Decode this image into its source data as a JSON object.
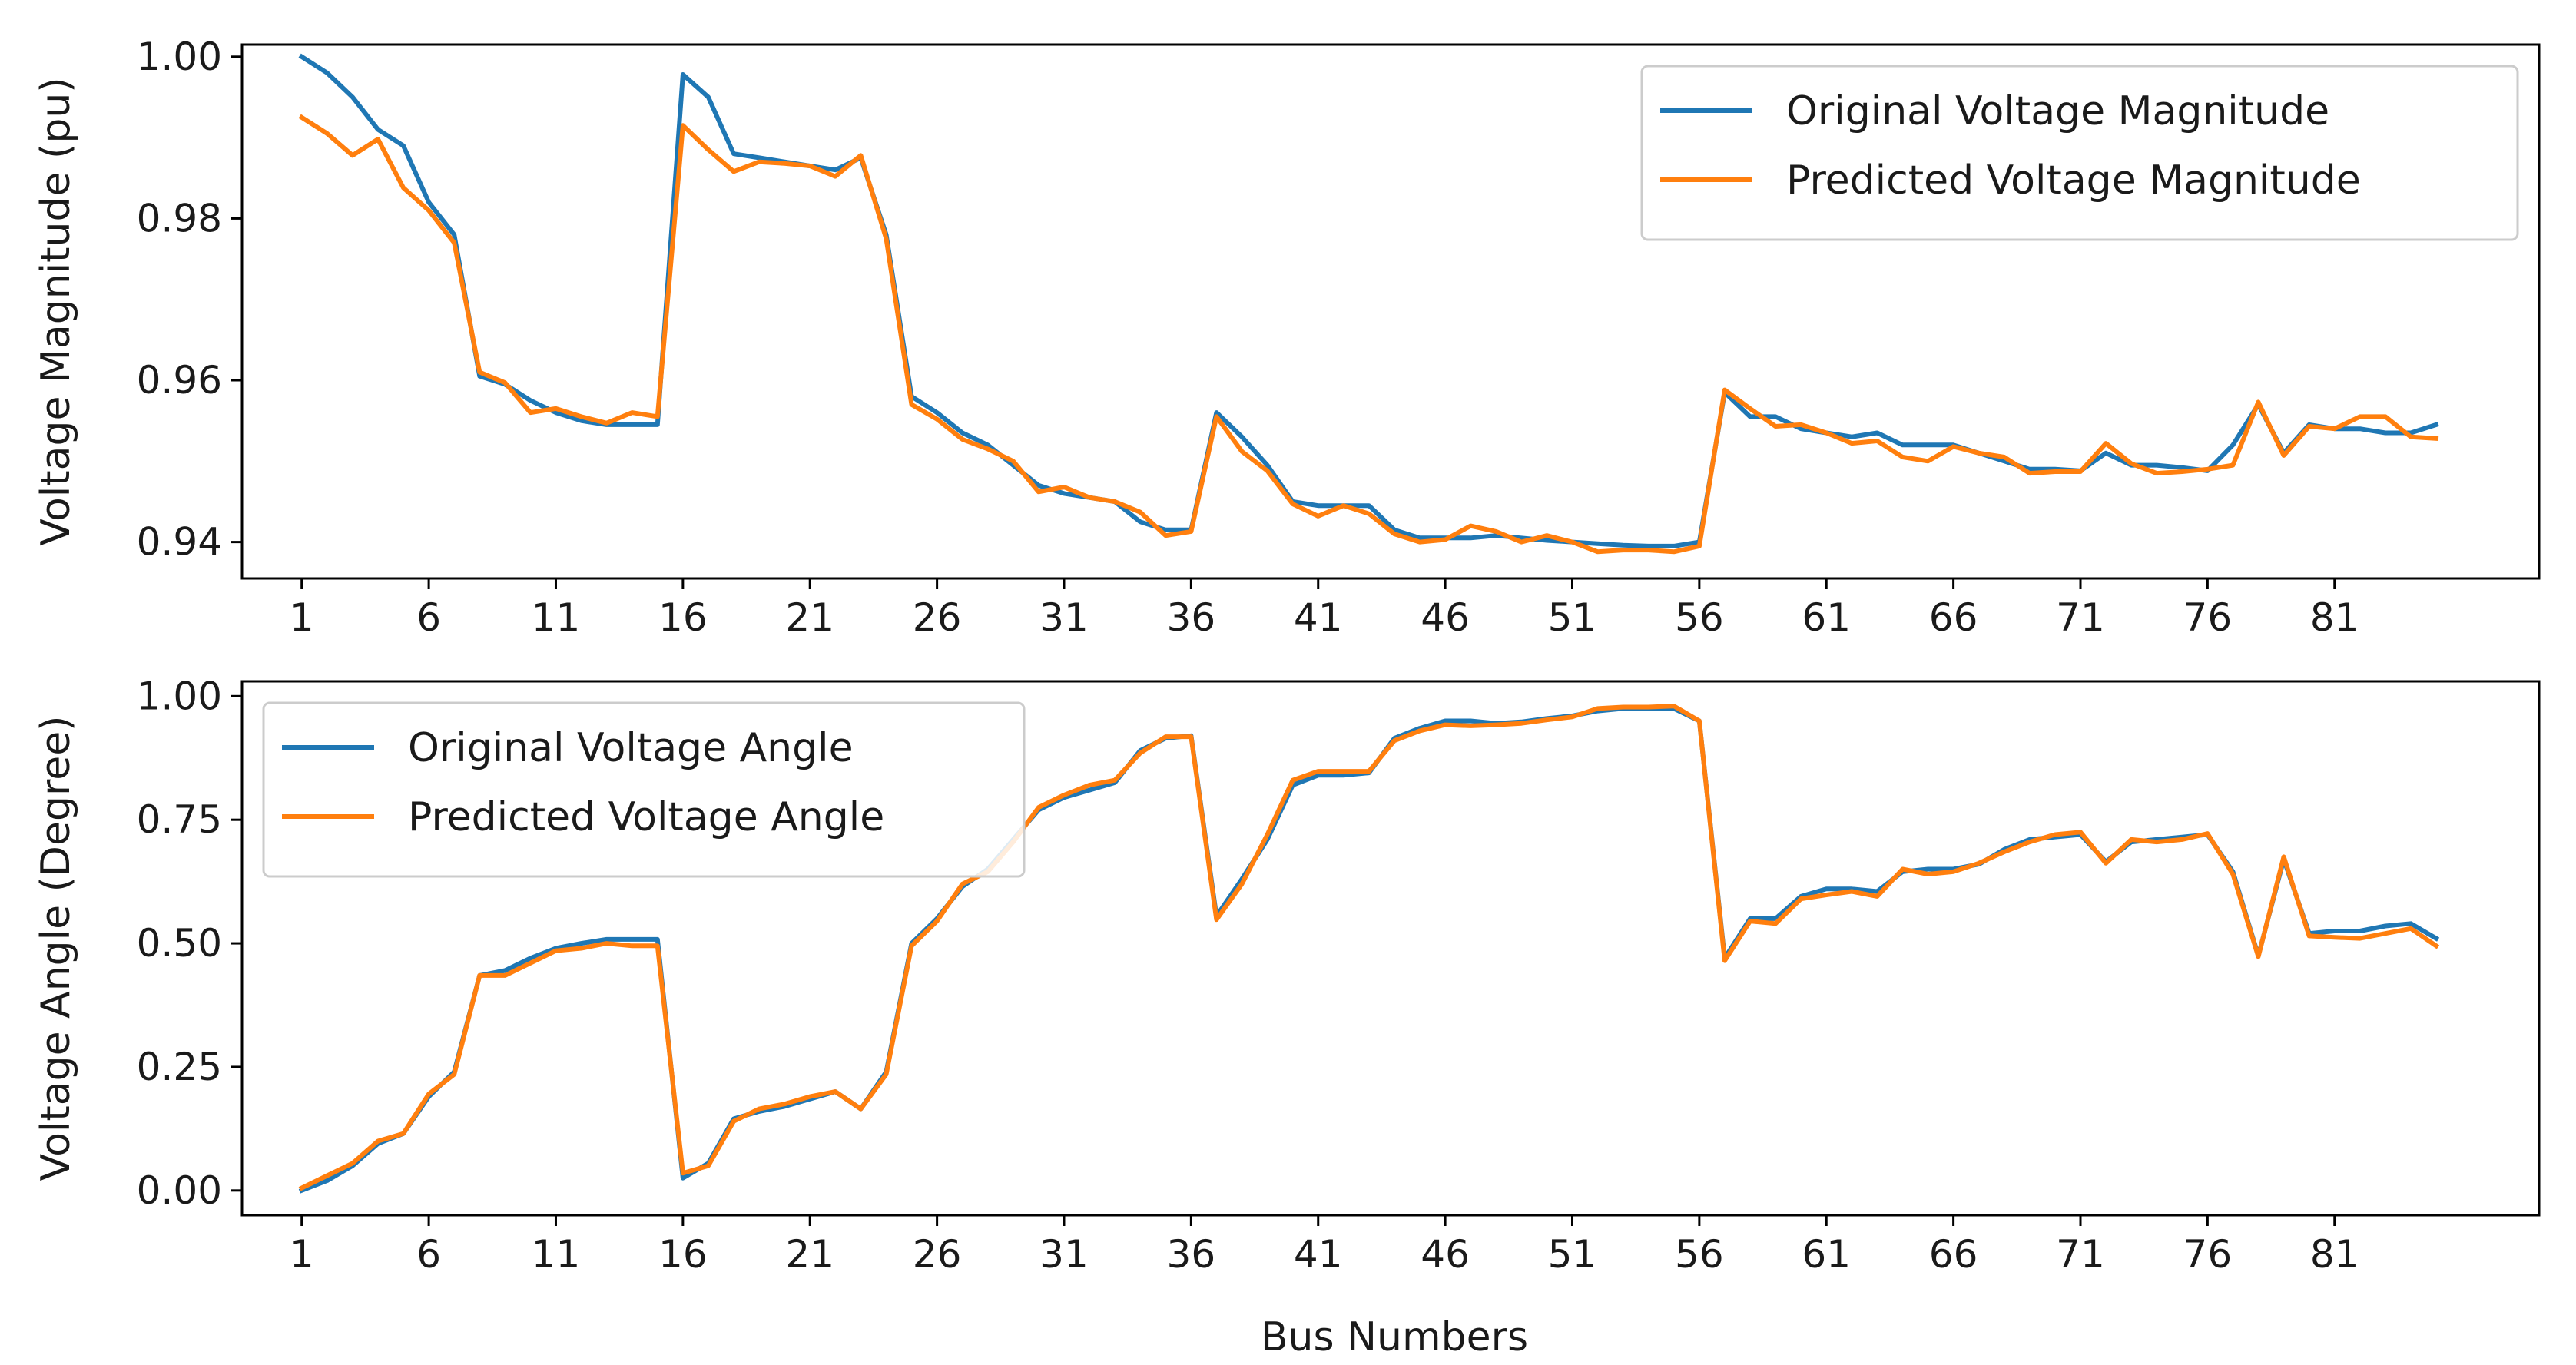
{
  "figure": {
    "xlabel": "Bus Numbers"
  },
  "chart_data": [
    {
      "type": "line",
      "xlabel": "",
      "ylabel": "Voltage Magnitude (pu)",
      "ylim": [
        0.9355,
        1.0015
      ],
      "xlim": [
        -1.35,
        89.05
      ],
      "x_tick_values": [
        1,
        6,
        11,
        16,
        21,
        26,
        31,
        36,
        41,
        46,
        51,
        56,
        61,
        66,
        71,
        76,
        81
      ],
      "x_tick_labels": [
        "1",
        "6",
        "11",
        "16",
        "21",
        "26",
        "31",
        "36",
        "41",
        "46",
        "51",
        "56",
        "61",
        "66",
        "71",
        "76",
        "81"
      ],
      "y_tick_values": [
        0.94,
        0.96,
        0.98,
        1.0
      ],
      "y_tick_labels": [
        "0.94",
        "0.96",
        "0.98",
        "1.00"
      ],
      "legend_position": "upper right",
      "grid": false,
      "x": [
        1,
        2,
        3,
        4,
        5,
        6,
        7,
        8,
        9,
        10,
        11,
        12,
        13,
        14,
        15,
        16,
        17,
        18,
        19,
        20,
        21,
        22,
        23,
        24,
        25,
        26,
        27,
        28,
        29,
        30,
        31,
        32,
        33,
        34,
        35,
        36,
        37,
        38,
        39,
        40,
        41,
        42,
        43,
        44,
        45,
        46,
        47,
        48,
        49,
        50,
        51,
        52,
        53,
        54,
        55,
        56,
        57,
        58,
        59,
        60,
        61,
        62,
        63,
        64,
        65,
        66,
        67,
        68,
        69,
        70,
        71,
        72,
        73,
        74,
        75,
        76,
        77,
        78,
        79,
        80,
        81,
        82,
        83,
        84,
        85
      ],
      "series": [
        {
          "name": "Original Voltage Magnitude",
          "color": "#1f77b4",
          "values": [
            1.0,
            0.998,
            0.995,
            0.991,
            0.989,
            0.982,
            0.978,
            0.9605,
            0.9595,
            0.9575,
            0.956,
            0.955,
            0.9545,
            0.9545,
            0.9545,
            0.9978,
            0.995,
            0.988,
            0.9875,
            0.987,
            0.9865,
            0.986,
            0.9875,
            0.978,
            0.958,
            0.956,
            0.9535,
            0.952,
            0.9495,
            0.947,
            0.946,
            0.9455,
            0.945,
            0.9425,
            0.9415,
            0.9415,
            0.956,
            0.953,
            0.9495,
            0.945,
            0.9445,
            0.9445,
            0.9445,
            0.9415,
            0.9405,
            0.9405,
            0.9405,
            0.9408,
            0.9405,
            0.9402,
            0.94,
            0.9398,
            0.9396,
            0.9395,
            0.9395,
            0.94,
            0.9585,
            0.9555,
            0.9555,
            0.954,
            0.9535,
            0.953,
            0.9535,
            0.952,
            0.952,
            0.952,
            0.951,
            0.95,
            0.949,
            0.949,
            0.9488,
            0.951,
            0.9495,
            0.9495,
            0.9492,
            0.9488,
            0.952,
            0.957,
            0.951,
            0.9545,
            0.954,
            0.954,
            0.9535,
            0.9535,
            0.9545
          ]
        },
        {
          "name": "Predicted Voltage Magnitude",
          "color": "#ff7f0e",
          "values": [
            0.9925,
            0.9905,
            0.9878,
            0.9898,
            0.9838,
            0.981,
            0.977,
            0.961,
            0.9597,
            0.956,
            0.9565,
            0.9555,
            0.9547,
            0.956,
            0.9555,
            0.9915,
            0.9885,
            0.9858,
            0.987,
            0.9868,
            0.9865,
            0.9852,
            0.9878,
            0.9775,
            0.957,
            0.9552,
            0.9527,
            0.9515,
            0.95,
            0.9462,
            0.9468,
            0.9455,
            0.945,
            0.9437,
            0.9408,
            0.9413,
            0.9555,
            0.9512,
            0.9488,
            0.9447,
            0.9432,
            0.9445,
            0.9435,
            0.941,
            0.94,
            0.9403,
            0.942,
            0.9413,
            0.94,
            0.9408,
            0.94,
            0.9388,
            0.939,
            0.939,
            0.9388,
            0.9395,
            0.9588,
            0.9565,
            0.9543,
            0.9545,
            0.9535,
            0.9522,
            0.9525,
            0.9505,
            0.95,
            0.9518,
            0.951,
            0.9505,
            0.9485,
            0.9487,
            0.9487,
            0.9522,
            0.9497,
            0.9485,
            0.9487,
            0.949,
            0.9495,
            0.9573,
            0.9507,
            0.9543,
            0.954,
            0.9555,
            0.9555,
            0.953,
            0.9528
          ]
        }
      ]
    },
    {
      "type": "line",
      "xlabel": "Bus Numbers",
      "ylabel": "Voltage Angle (Degree)",
      "ylim": [
        -0.05,
        1.03
      ],
      "xlim": [
        -1.35,
        89.05
      ],
      "x_tick_values": [
        1,
        6,
        11,
        16,
        21,
        26,
        31,
        36,
        41,
        46,
        51,
        56,
        61,
        66,
        71,
        76,
        81
      ],
      "x_tick_labels": [
        "1",
        "6",
        "11",
        "16",
        "21",
        "26",
        "31",
        "36",
        "41",
        "46",
        "51",
        "56",
        "61",
        "66",
        "71",
        "76",
        "81"
      ],
      "y_tick_values": [
        0.0,
        0.25,
        0.5,
        0.75,
        1.0
      ],
      "y_tick_labels": [
        "0.00",
        "0.25",
        "0.50",
        "0.75",
        "1.00"
      ],
      "legend_position": "upper left",
      "grid": false,
      "x": [
        1,
        2,
        3,
        4,
        5,
        6,
        7,
        8,
        9,
        10,
        11,
        12,
        13,
        14,
        15,
        16,
        17,
        18,
        19,
        20,
        21,
        22,
        23,
        24,
        25,
        26,
        27,
        28,
        29,
        30,
        31,
        32,
        33,
        34,
        35,
        36,
        37,
        38,
        39,
        40,
        41,
        42,
        43,
        44,
        45,
        46,
        47,
        48,
        49,
        50,
        51,
        52,
        53,
        54,
        55,
        56,
        57,
        58,
        59,
        60,
        61,
        62,
        63,
        64,
        65,
        66,
        67,
        68,
        69,
        70,
        71,
        72,
        73,
        74,
        75,
        76,
        77,
        78,
        79,
        80,
        81,
        82,
        83,
        84,
        85
      ],
      "series": [
        {
          "name": "Original Voltage Angle",
          "color": "#1f77b4",
          "values": [
            0.0,
            0.02,
            0.05,
            0.095,
            0.115,
            0.19,
            0.24,
            0.435,
            0.445,
            0.47,
            0.49,
            0.5,
            0.508,
            0.508,
            0.508,
            0.025,
            0.055,
            0.145,
            0.16,
            0.17,
            0.185,
            0.2,
            0.165,
            0.24,
            0.5,
            0.55,
            0.615,
            0.65,
            0.71,
            0.77,
            0.795,
            0.81,
            0.825,
            0.89,
            0.915,
            0.92,
            0.555,
            0.63,
            0.71,
            0.82,
            0.84,
            0.84,
            0.845,
            0.915,
            0.935,
            0.95,
            0.95,
            0.945,
            0.948,
            0.955,
            0.96,
            0.97,
            0.975,
            0.975,
            0.975,
            0.95,
            0.47,
            0.55,
            0.55,
            0.595,
            0.61,
            0.61,
            0.605,
            0.645,
            0.65,
            0.65,
            0.66,
            0.69,
            0.71,
            0.715,
            0.72,
            0.665,
            0.705,
            0.71,
            0.715,
            0.72,
            0.645,
            0.475,
            0.67,
            0.52,
            0.525,
            0.525,
            0.535,
            0.54,
            0.51
          ]
        },
        {
          "name": "Predicted Voltage Angle",
          "color": "#ff7f0e",
          "values": [
            0.005,
            0.03,
            0.055,
            0.1,
            0.115,
            0.195,
            0.235,
            0.435,
            0.435,
            0.46,
            0.485,
            0.49,
            0.5,
            0.495,
            0.495,
            0.035,
            0.05,
            0.14,
            0.165,
            0.175,
            0.19,
            0.2,
            0.165,
            0.235,
            0.495,
            0.545,
            0.62,
            0.645,
            0.705,
            0.775,
            0.8,
            0.82,
            0.83,
            0.885,
            0.918,
            0.918,
            0.548,
            0.62,
            0.72,
            0.83,
            0.848,
            0.848,
            0.848,
            0.91,
            0.93,
            0.942,
            0.94,
            0.942,
            0.945,
            0.952,
            0.958,
            0.975,
            0.978,
            0.978,
            0.98,
            0.95,
            0.465,
            0.545,
            0.54,
            0.59,
            0.598,
            0.605,
            0.595,
            0.65,
            0.64,
            0.645,
            0.662,
            0.685,
            0.705,
            0.72,
            0.725,
            0.662,
            0.71,
            0.705,
            0.71,
            0.722,
            0.64,
            0.473,
            0.675,
            0.515,
            0.512,
            0.51,
            0.52,
            0.53,
            0.495
          ]
        }
      ]
    }
  ]
}
